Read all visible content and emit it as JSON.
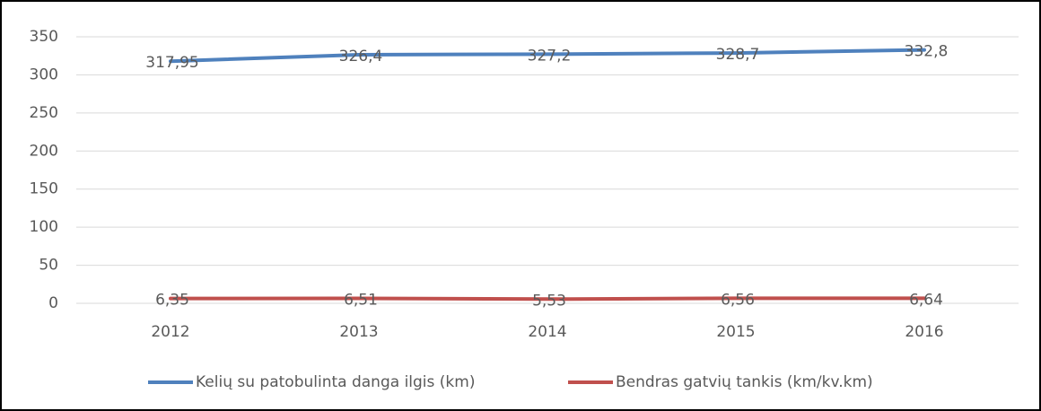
{
  "chart_data": {
    "type": "line",
    "categories": [
      "2012",
      "2013",
      "2014",
      "2015",
      "2016"
    ],
    "series": [
      {
        "name": "Kelių su patobulinta danga ilgis (km)",
        "color": "#4f81bd",
        "values": [
          317.95,
          326.4,
          327.2,
          328.7,
          332.8
        ],
        "value_labels": [
          "317,95",
          "326,4",
          "327,2",
          "328,7",
          "332,8"
        ]
      },
      {
        "name": "Bendras gatvių tankis (km/kv.km)",
        "color": "#c0504d",
        "values": [
          6.35,
          6.51,
          5.53,
          6.56,
          6.64
        ],
        "value_labels": [
          "6,35",
          "6,51",
          "5,53",
          "6,56",
          "6,64"
        ]
      }
    ],
    "ylim": [
      0,
      350
    ],
    "yticks": [
      0,
      50,
      100,
      150,
      200,
      250,
      300,
      350
    ],
    "grid": true,
    "legend": "bottom"
  }
}
